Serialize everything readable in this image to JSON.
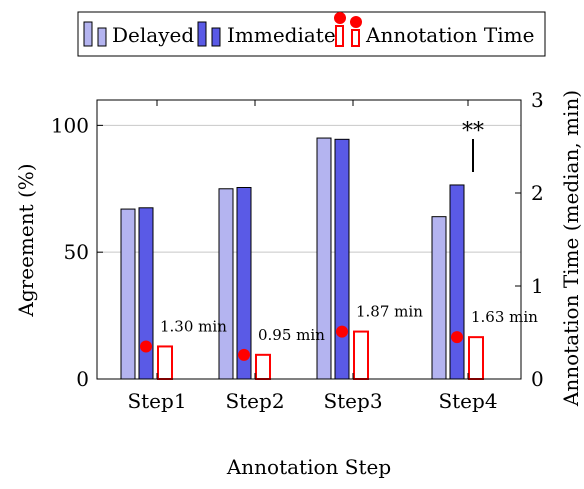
{
  "chart_data": {
    "type": "bar",
    "categories": [
      "Step1",
      "Step2",
      "Step3",
      "Step4"
    ],
    "xlabel": "Annotation Step",
    "ylabel": "Agreement (%)",
    "ylabel_right": "Annotation Time (median, min)",
    "ylim": [
      0,
      110
    ],
    "ylim_right": [
      0,
      3
    ],
    "yticks": [
      0,
      50,
      100
    ],
    "yticks_right": [
      0,
      1,
      2,
      3
    ],
    "grid": true,
    "legend_position": "top",
    "series": [
      {
        "name": "Delayed",
        "axis": "left",
        "values": [
          67,
          75,
          95,
          64
        ],
        "color": "#b4b4f0"
      },
      {
        "name": "Immediate",
        "axis": "left",
        "values": [
          67.5,
          75.5,
          94.5,
          76.5
        ],
        "color": "#5a5ae6"
      },
      {
        "name": "Annotation Time",
        "axis": "right",
        "values": [
          0.35,
          0.26,
          0.51,
          0.45
        ],
        "color": "#ff0000",
        "dot_values": [
          0.35,
          0.26,
          0.51,
          0.45
        ],
        "labels": [
          "1.30 min",
          "0.95 min",
          "1.87 min",
          "1.63 min"
        ]
      }
    ],
    "annotations": [
      {
        "text": "**",
        "category": "Step4"
      }
    ]
  }
}
